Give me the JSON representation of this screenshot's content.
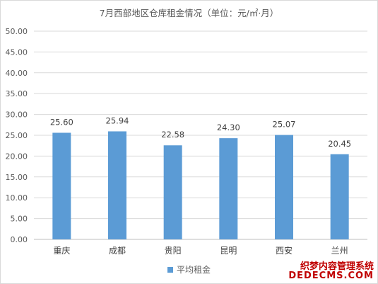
{
  "chart_data": {
    "type": "bar",
    "title": "7月西部地区仓库租金情况（单位：元/㎡·月）",
    "categories": [
      "重庆",
      "成都",
      "贵阳",
      "昆明",
      "西安",
      "兰州"
    ],
    "series": [
      {
        "name": "平均租金",
        "values": [
          25.6,
          25.94,
          22.58,
          24.3,
          25.07,
          20.45
        ]
      }
    ],
    "data_labels": [
      "25.60",
      "25.94",
      "22.58",
      "24.30",
      "25.07",
      "20.45"
    ],
    "y_ticks": [
      "0.00",
      "5.00",
      "10.00",
      "15.00",
      "20.00",
      "25.00",
      "30.00",
      "35.00",
      "40.00",
      "45.00",
      "50.00"
    ],
    "ylim": [
      0,
      50
    ],
    "grid": true,
    "legend_position": "bottom",
    "bar_color": "#5b9bd5"
  },
  "watermark": {
    "line1": "织梦内容管理系统",
    "line2": "DEDECMS.COM"
  }
}
